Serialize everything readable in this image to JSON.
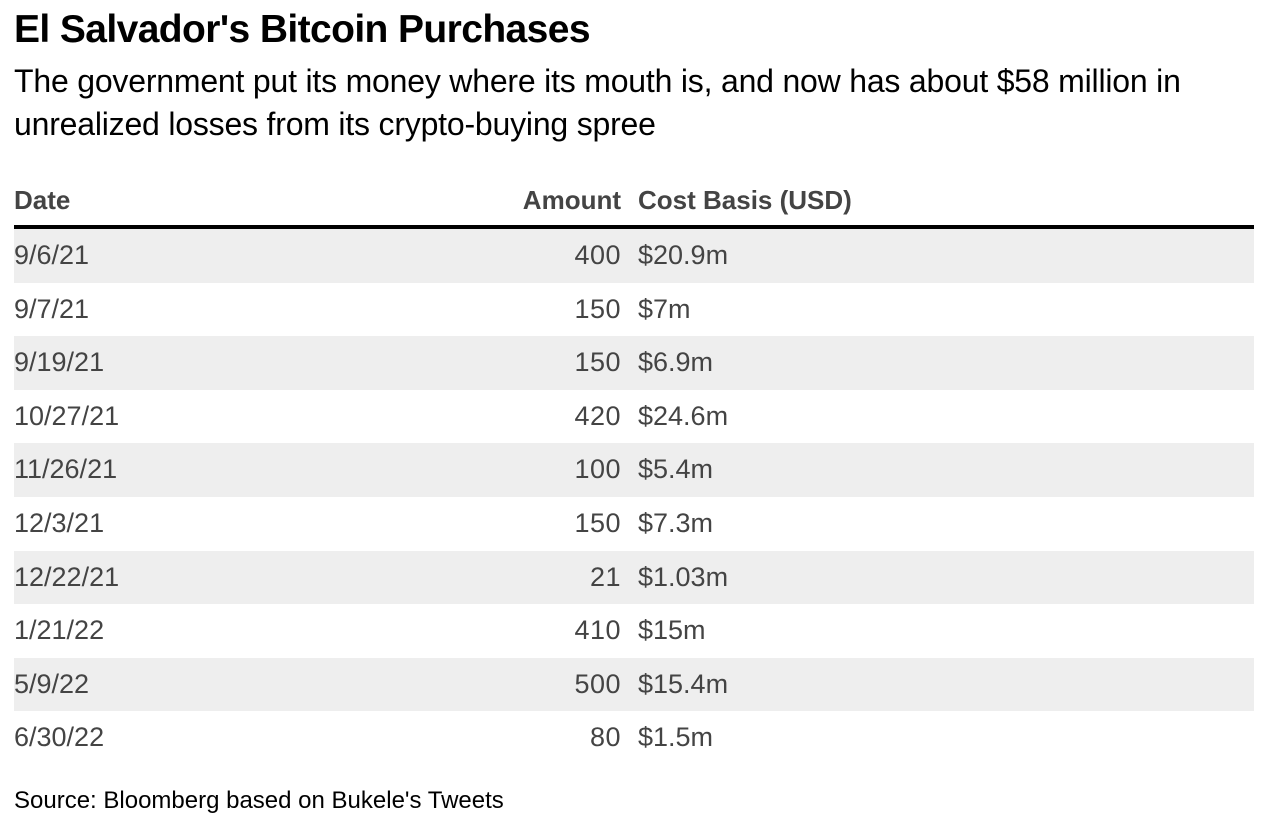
{
  "title": "El Salvador's Bitcoin Purchases",
  "subtitle": "The government put its money where its mouth is, and now has about $58 million in unrealized losses from its crypto-buying spree",
  "source": "Source: Bloomberg based on Bukele's Tweets",
  "colors": {
    "header_rule": "#000000",
    "row_shade": "#eeeeee",
    "body_text": "#444444"
  },
  "chart_data": {
    "type": "table",
    "title": "El Salvador's Bitcoin Purchases",
    "columns": [
      "Date",
      "Amount",
      "Cost Basis (USD)"
    ],
    "rows": [
      {
        "date": "9/6/21",
        "amount": "400",
        "cost": "$20.9m"
      },
      {
        "date": "9/7/21",
        "amount": "150",
        "cost": "$7m"
      },
      {
        "date": "9/19/21",
        "amount": "150",
        "cost": "$6.9m"
      },
      {
        "date": "10/27/21",
        "amount": "420",
        "cost": "$24.6m"
      },
      {
        "date": "11/26/21",
        "amount": "100",
        "cost": "$5.4m"
      },
      {
        "date": "12/3/21",
        "amount": "150",
        "cost": "$7.3m"
      },
      {
        "date": "12/22/21",
        "amount": "21",
        "cost": "$1.03m"
      },
      {
        "date": "1/21/22",
        "amount": "410",
        "cost": "$15m"
      },
      {
        "date": "5/9/22",
        "amount": "500",
        "cost": "$15.4m"
      },
      {
        "date": "6/30/22",
        "amount": "80",
        "cost": "$1.5m"
      }
    ]
  }
}
